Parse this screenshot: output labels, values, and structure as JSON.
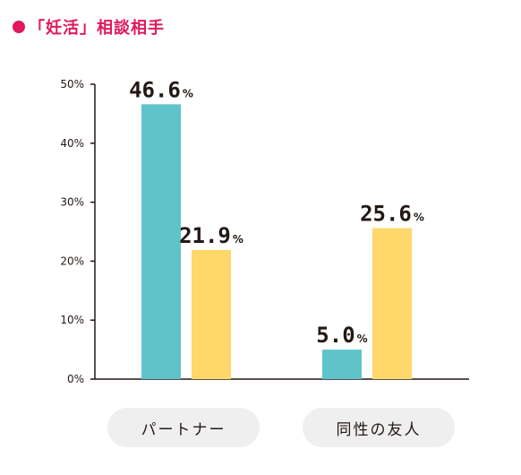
{
  "title": "「妊活」相談相手",
  "chart_data": {
    "type": "bar",
    "title": "「妊活」相談相手",
    "categories": [
      "パートナー",
      "同性の友人"
    ],
    "series": [
      {
        "color": "#5ec4c9",
        "values": [
          46.6,
          5.0
        ]
      },
      {
        "color": "#ffd76a",
        "values": [
          21.9,
          25.6
        ]
      }
    ],
    "value_unit": "%",
    "yticks": [
      "0%",
      "10%",
      "20%",
      "30%",
      "40%",
      "50%"
    ],
    "ylim": [
      0,
      50
    ],
    "xlabel": "",
    "ylabel": "",
    "grid": false,
    "legend": "none"
  }
}
